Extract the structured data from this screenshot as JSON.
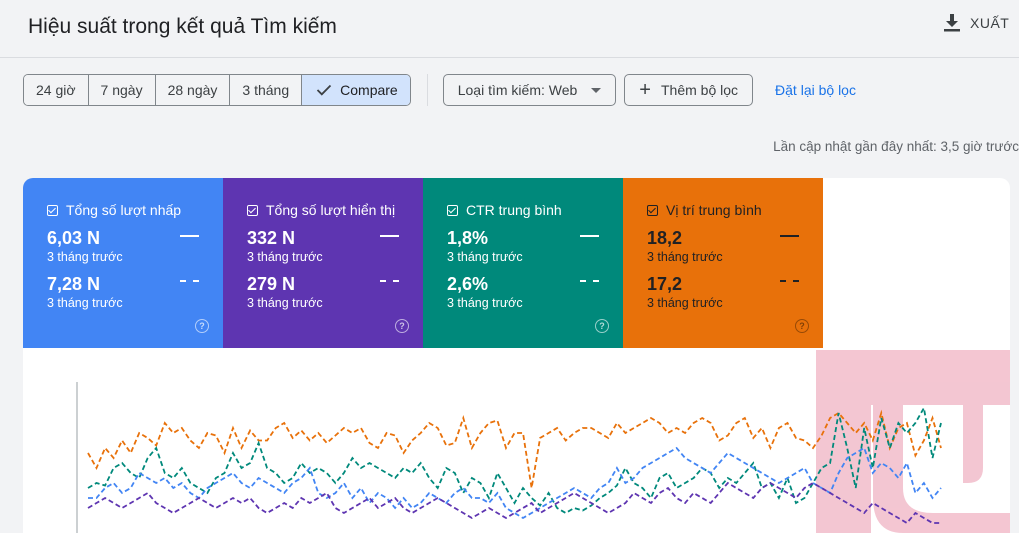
{
  "header": {
    "title": "Hiệu suất trong kết quả Tìm kiếm",
    "export_label": "XUẤT"
  },
  "toolbar": {
    "ranges": [
      "24 giờ",
      "7 ngày",
      "28 ngày",
      "3 tháng"
    ],
    "compare_label": "Compare",
    "search_type": "Loại tìm kiếm: Web",
    "add_filter": "Thêm bộ lọc",
    "reset": "Đặt lại bộ lọc"
  },
  "updated": "Lần cập nhật gần đây nhất: 3,5 giờ trước",
  "metrics": [
    {
      "title": "Tổng số lượt nhấp",
      "value": "6,03 N",
      "period": "3 tháng trước",
      "compare_value": "7,28 N",
      "compare_period": "3 tháng trước",
      "color": "#4285f4"
    },
    {
      "title": "Tổng số lượt hiển thị",
      "value": "332 N",
      "period": "3 tháng trước",
      "compare_value": "279 N",
      "compare_period": "3 tháng trước",
      "color": "#5e35b1"
    },
    {
      "title": "CTR trung bình",
      "value": "1,8%",
      "period": "3 tháng trước",
      "compare_value": "2,6%",
      "compare_period": "3 tháng trước",
      "color": "#00897b"
    },
    {
      "title": "Vị trí trung bình",
      "value": "18,2",
      "period": "3 tháng trước",
      "compare_value": "17,2",
      "compare_period": "3 tháng trước",
      "color": "#e8710a"
    }
  ],
  "colors": {
    "accent": "#1a73e8",
    "active_segment": "#d2e3fc",
    "watermark": "#f0b3c3"
  },
  "chart_data": {
    "type": "line",
    "series": [
      {
        "name": "Vị trí trung bình",
        "color": "#e8710a",
        "values": [
          28,
          22,
          30,
          26,
          33,
          28,
          36,
          34,
          31,
          40,
          36,
          38,
          33,
          30,
          36,
          35,
          28,
          38,
          30,
          37,
          33,
          33,
          38,
          40,
          34,
          37,
          33,
          36,
          32,
          35,
          38,
          36,
          38,
          32,
          30,
          36,
          35,
          28,
          33,
          36,
          40,
          38,
          31,
          32,
          42,
          30,
          36,
          40,
          41,
          30,
          36,
          36,
          14,
          34,
          36,
          38,
          33,
          36,
          38,
          38,
          36,
          34,
          40,
          36,
          38,
          40,
          42,
          40,
          36,
          38,
          36,
          40,
          42,
          40,
          33,
          35,
          40,
          42,
          34,
          38,
          30,
          38,
          40,
          34,
          33,
          30,
          35,
          42,
          44,
          40,
          36,
          40,
          33,
          44,
          30,
          38,
          40,
          27,
          33,
          42,
          30
        ]
      },
      {
        "name": "CTR trung bình",
        "color": "#00897b",
        "values": [
          14,
          16,
          15,
          22,
          24,
          20,
          18,
          26,
          30,
          20,
          18,
          22,
          16,
          14,
          12,
          18,
          20,
          28,
          22,
          24,
          32,
          22,
          20,
          16,
          18,
          24,
          20,
          22,
          20,
          16,
          20,
          26,
          22,
          24,
          22,
          20,
          18,
          22,
          20,
          24,
          18,
          14,
          22,
          20,
          12,
          18,
          16,
          10,
          20,
          14,
          8,
          14,
          10,
          7,
          12,
          6,
          4,
          6,
          5,
          7,
          10,
          12,
          15,
          22,
          16,
          14,
          10,
          18,
          20,
          14,
          16,
          18,
          22,
          20,
          14,
          18,
          16,
          20,
          24,
          14,
          16,
          10,
          18,
          8,
          10,
          16,
          22,
          24,
          44,
          30,
          14,
          38,
          22,
          42,
          30,
          40,
          36,
          40,
          46,
          26,
          40
        ]
      },
      {
        "name": "Tổng số lượt nhấp",
        "color": "#4285f4",
        "values": [
          10,
          10,
          14,
          16,
          12,
          14,
          20,
          18,
          16,
          18,
          14,
          16,
          12,
          10,
          14,
          16,
          18,
          20,
          16,
          14,
          18,
          16,
          14,
          12,
          16,
          18,
          22,
          12,
          10,
          12,
          16,
          10,
          14,
          8,
          12,
          10,
          6,
          10,
          6,
          8,
          12,
          10,
          8,
          12,
          14,
          10,
          10,
          8,
          12,
          6,
          4,
          2,
          4,
          6,
          8,
          10,
          12,
          14,
          12,
          10,
          14,
          16,
          22,
          16,
          18,
          22,
          24,
          26,
          28,
          30,
          26,
          24,
          22,
          20,
          24,
          28,
          26,
          24,
          22,
          20,
          18,
          16,
          18,
          20,
          22,
          16,
          14,
          12,
          20,
          26,
          28,
          30,
          20,
          24,
          22,
          18,
          24,
          12,
          16,
          10,
          14
        ]
      },
      {
        "name": "Tổng số lượt hiển thị",
        "color": "#5e35b1",
        "values": [
          6,
          8,
          10,
          8,
          6,
          8,
          10,
          12,
          8,
          6,
          4,
          6,
          8,
          10,
          8,
          6,
          8,
          10,
          8,
          10,
          6,
          4,
          6,
          8,
          6,
          10,
          8,
          10,
          12,
          6,
          4,
          6,
          8,
          10,
          6,
          8,
          10,
          6,
          4,
          6,
          8,
          10,
          8,
          6,
          4,
          2,
          4,
          6,
          4,
          2,
          4,
          6,
          8,
          4,
          6,
          8,
          10,
          12,
          10,
          8,
          6,
          4,
          6,
          8,
          12,
          10,
          8,
          12,
          14,
          10,
          8,
          12,
          10,
          8,
          12,
          16,
          14,
          12,
          10,
          14,
          16,
          14,
          12,
          10,
          14,
          16,
          14,
          12,
          10,
          8,
          6,
          4,
          8,
          6,
          4,
          2,
          0,
          4,
          2,
          0,
          0
        ]
      }
    ]
  }
}
